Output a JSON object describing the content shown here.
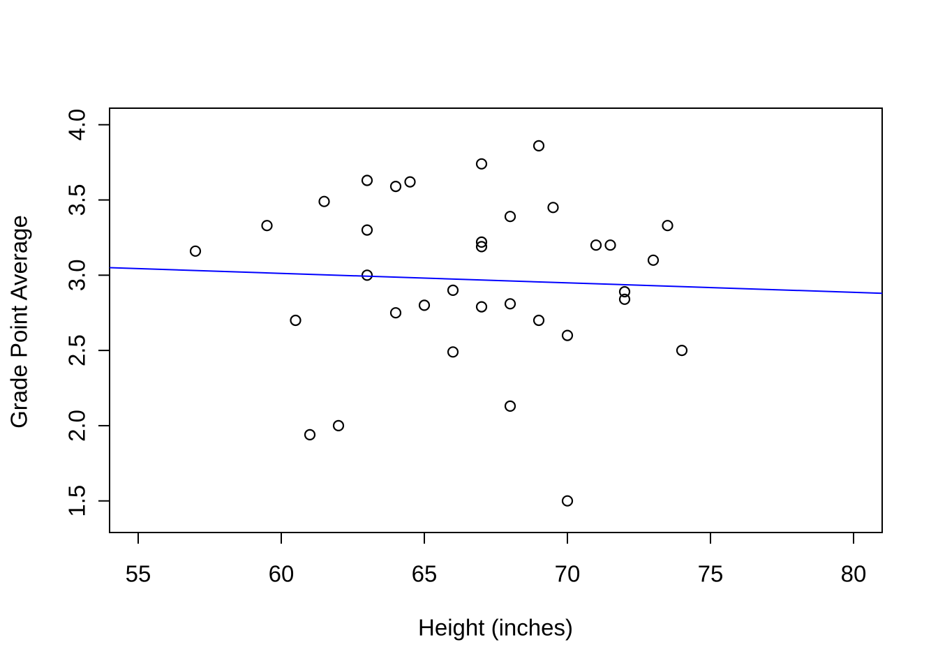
{
  "figure": {
    "background": "#FFFFFF",
    "title": ""
  },
  "chart_data": {
    "type": "scatter",
    "title": "",
    "xlabel": "Height (inches)",
    "ylabel": "Grade Point Average",
    "xlim": [
      54,
      81
    ],
    "ylim": [
      1.29,
      4.11
    ],
    "grid": false,
    "legend": null,
    "marker": "open-circle",
    "marker_color": "#000000",
    "axis_color": "#000000",
    "x_ticks": [
      {
        "value": 55,
        "label": "55"
      },
      {
        "value": 60,
        "label": "60"
      },
      {
        "value": 65,
        "label": "65"
      },
      {
        "value": 70,
        "label": "70"
      },
      {
        "value": 75,
        "label": "75"
      },
      {
        "value": 80,
        "label": "80"
      }
    ],
    "y_ticks": [
      {
        "value": 1.5,
        "label": "1.5"
      },
      {
        "value": 2.0,
        "label": "2.0"
      },
      {
        "value": 2.5,
        "label": "2.5"
      },
      {
        "value": 3.0,
        "label": "3.0"
      },
      {
        "value": 3.5,
        "label": "3.5"
      },
      {
        "value": 4.0,
        "label": "4.0"
      }
    ],
    "points": [
      [
        57,
        3.16
      ],
      [
        59.5,
        3.33
      ],
      [
        60.5,
        2.7
      ],
      [
        61,
        1.94
      ],
      [
        61.5,
        3.49
      ],
      [
        62,
        2.0
      ],
      [
        63,
        3.63
      ],
      [
        63,
        3.3
      ],
      [
        63,
        3.0
      ],
      [
        64,
        3.59
      ],
      [
        64,
        2.75
      ],
      [
        64.5,
        3.62
      ],
      [
        65,
        2.8
      ],
      [
        66,
        2.9
      ],
      [
        66,
        2.49
      ],
      [
        67,
        3.74
      ],
      [
        67,
        3.22
      ],
      [
        67,
        3.19
      ],
      [
        67,
        2.79
      ],
      [
        68,
        3.39
      ],
      [
        68,
        2.81
      ],
      [
        68,
        2.13
      ],
      [
        69,
        3.86
      ],
      [
        69,
        2.7
      ],
      [
        69.5,
        3.45
      ],
      [
        70,
        2.6
      ],
      [
        70,
        1.5
      ],
      [
        71,
        3.2
      ],
      [
        71.5,
        3.2
      ],
      [
        72,
        2.89
      ],
      [
        72,
        2.84
      ],
      [
        73,
        3.1
      ],
      [
        73.5,
        3.33
      ],
      [
        74,
        2.5
      ]
    ],
    "regression_line": {
      "x1": 54,
      "y1": 3.05,
      "x2": 81,
      "y2": 2.88,
      "color": "#0000FF"
    }
  }
}
